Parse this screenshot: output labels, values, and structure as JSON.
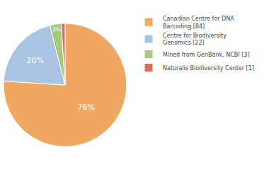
{
  "chart_data": {
    "type": "pie",
    "categories": [
      "Canadian Centre for DNA\nBarcoding [84]",
      "Centre for Biodiversity\nGenomics [22]",
      "Mined from GenBank, NCBI [3]",
      "Naturalis Biodiversity Center [1]"
    ],
    "values": [
      76,
      20,
      3,
      1
    ],
    "value_labels": [
      "76%",
      "20%",
      "3%",
      null
    ],
    "data_labels": true,
    "colors": [
      "#f0a860",
      "#a8c4e0",
      "#a8c87a",
      "#d07060"
    ],
    "legend": "right"
  }
}
